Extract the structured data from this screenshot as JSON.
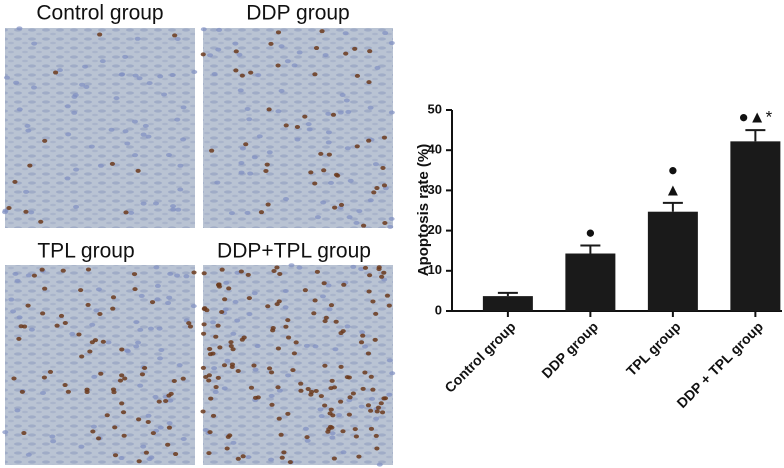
{
  "panels": [
    {
      "label": "Control group"
    },
    {
      "label": "DDP group"
    },
    {
      "label": "TPL group"
    },
    {
      "label": "DDP+TPL group"
    }
  ],
  "chart_data": {
    "type": "bar",
    "ylabel": "Apoptosis rate (%)",
    "categories": [
      "Control group",
      "DDP group",
      "TPL group",
      "DDP + TPL group"
    ],
    "values": [
      3.7,
      14.3,
      24.7,
      42.2
    ],
    "errors": [
      0.8,
      2.0,
      2.2,
      2.8
    ],
    "markers": [
      [],
      [
        "●"
      ],
      [
        "●",
        "▲"
      ],
      [
        "●▲*"
      ]
    ],
    "color": "#1a1a1a",
    "ylim": [
      0,
      50
    ],
    "yticks": [
      0,
      10,
      20,
      30,
      40,
      50
    ],
    "grid": false
  }
}
